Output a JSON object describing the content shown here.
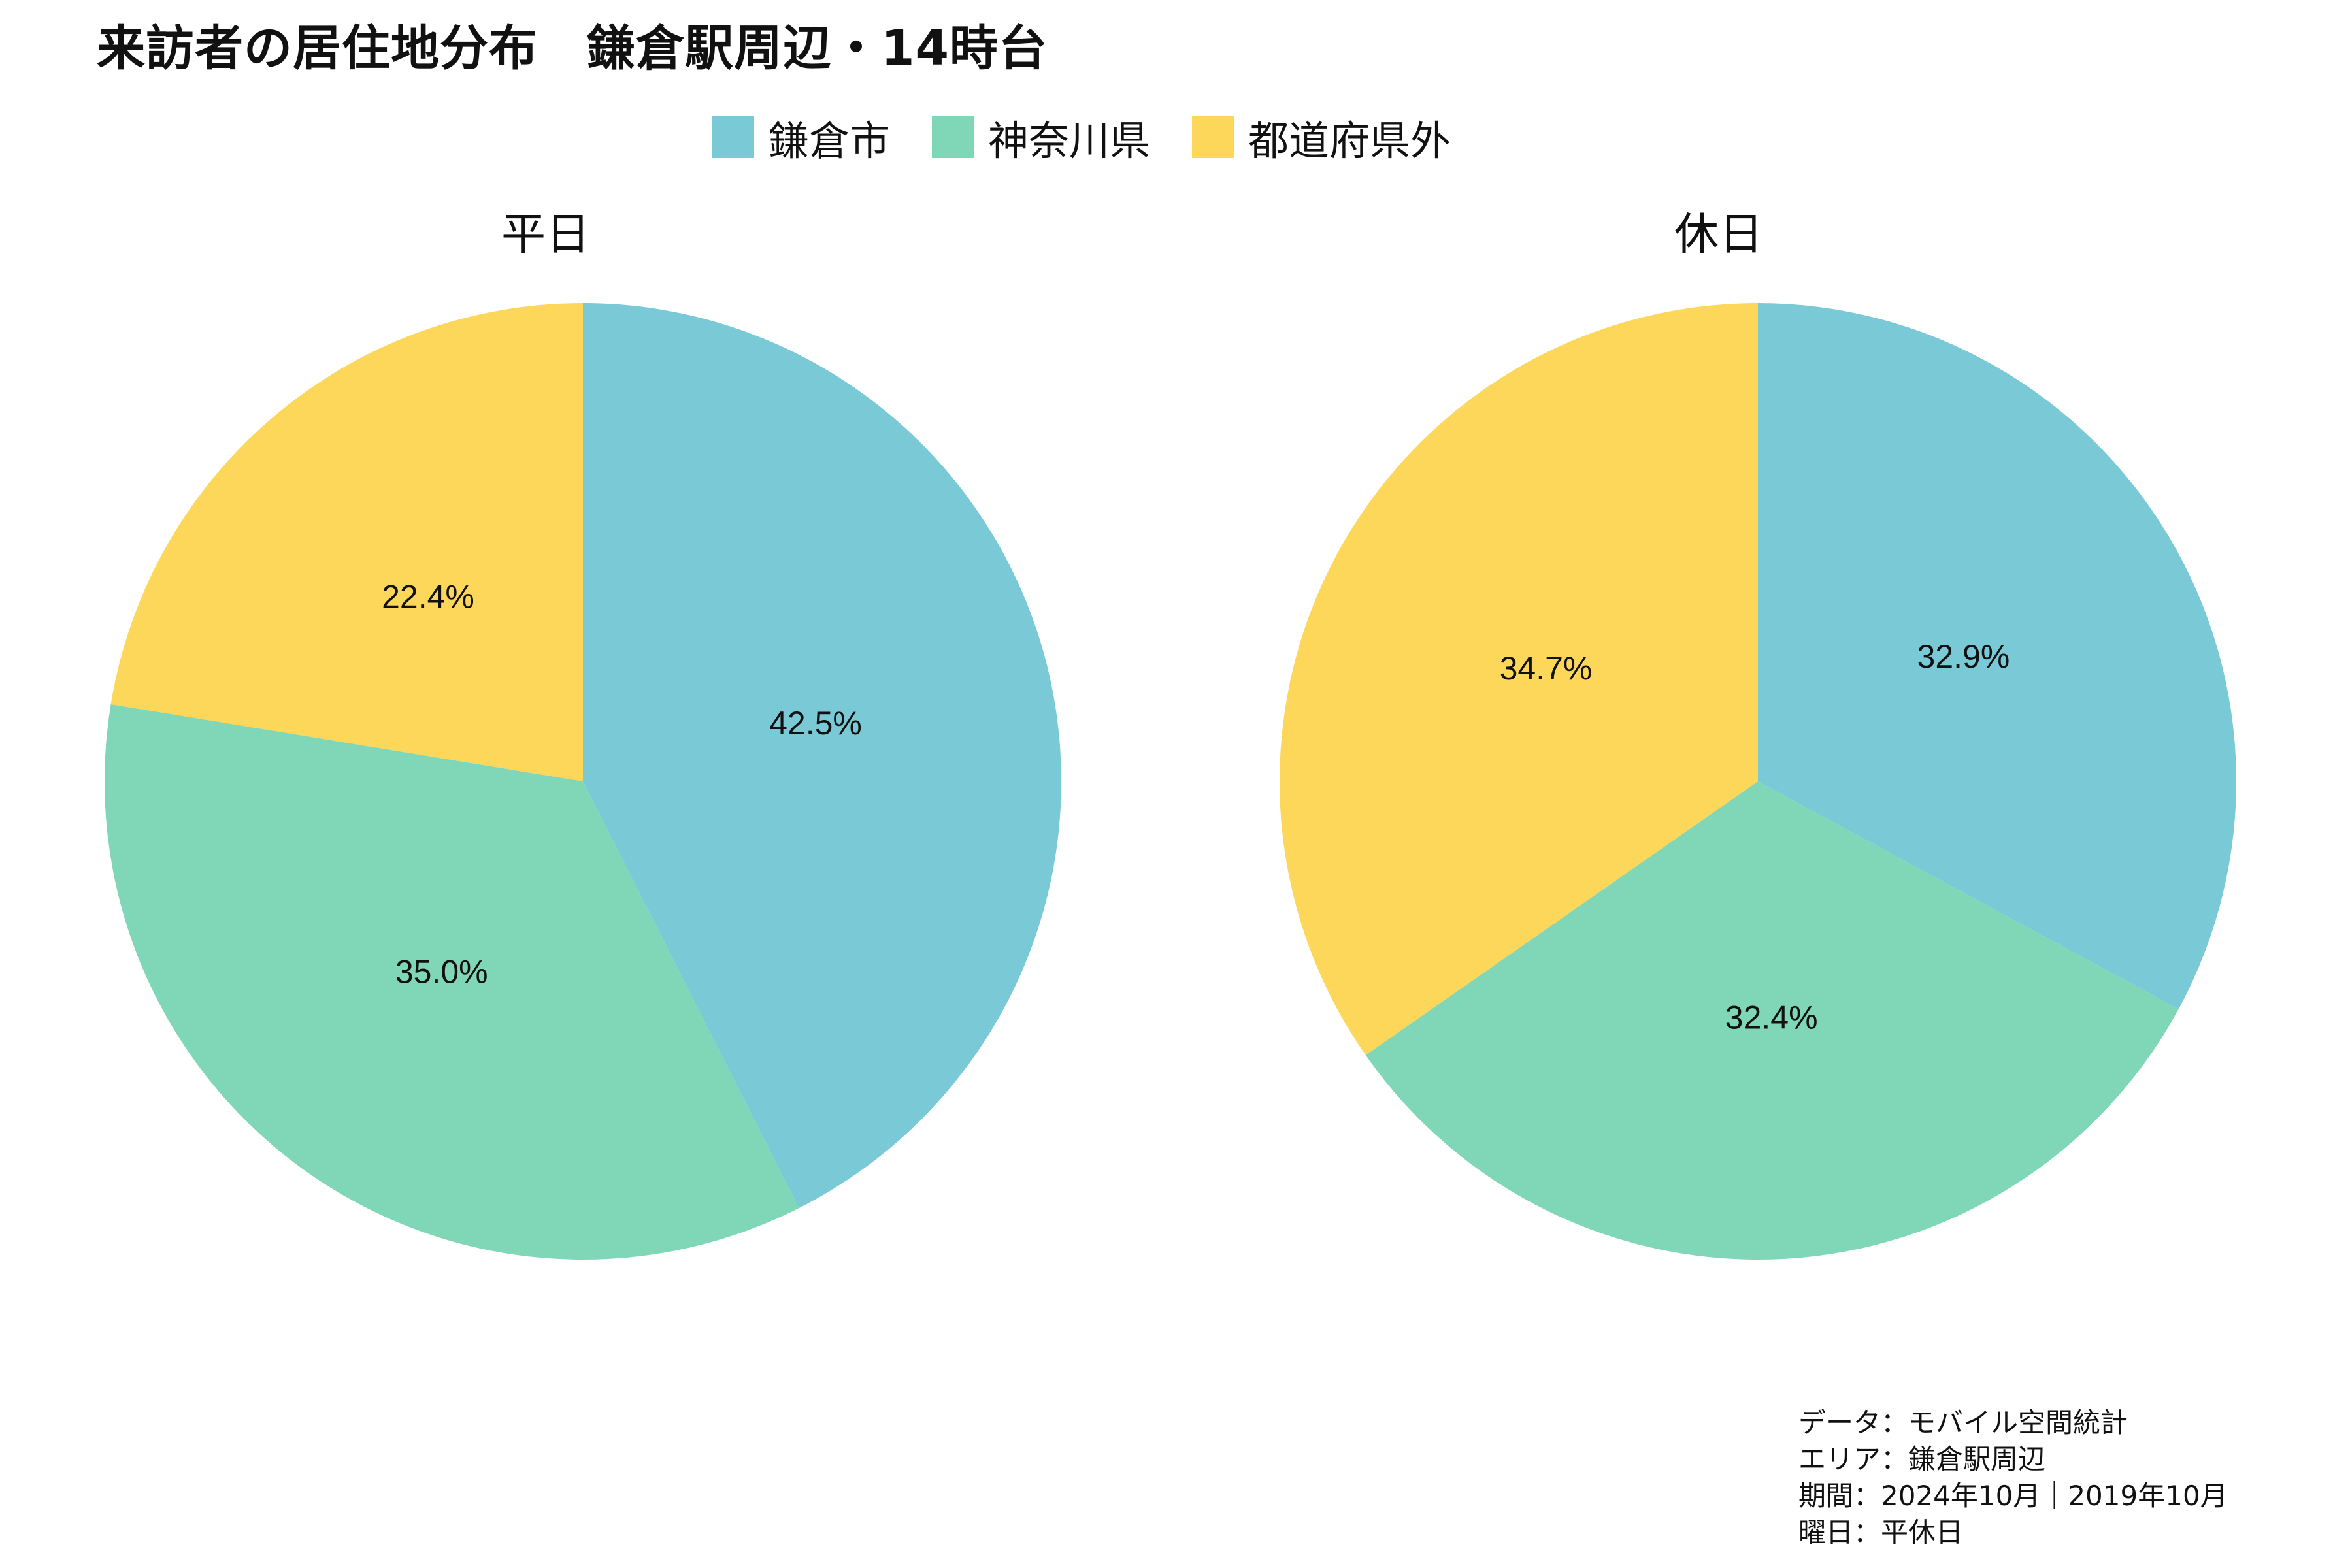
{
  "title": "来訪者の居住地分布　鎌倉駅周辺・14時台",
  "legend": [
    {
      "label": "鎌倉市",
      "color": "#7AC9D6"
    },
    {
      "label": "神奈川県",
      "color": "#7FD7B8"
    },
    {
      "label": "都道府県外",
      "color": "#FDD75A"
    }
  ],
  "chart_data": [
    {
      "type": "pie",
      "title": "平日",
      "categories": [
        "鎌倉市",
        "神奈川県",
        "都道府県外"
      ],
      "values": [
        42.5,
        35.0,
        22.4
      ],
      "labels": [
        "42.5%",
        "35.0%",
        "22.4%"
      ],
      "colors": [
        "#7AC9D6",
        "#7FD7B8",
        "#FDD75A"
      ],
      "start": "12 o'clock",
      "direction": "clockwise"
    },
    {
      "type": "pie",
      "title": "休日",
      "categories": [
        "鎌倉市",
        "神奈川県",
        "都道府県外"
      ],
      "values": [
        32.9,
        32.4,
        34.7
      ],
      "labels": [
        "32.9%",
        "32.4%",
        "34.7%"
      ],
      "colors": [
        "#7AC9D6",
        "#7FD7B8",
        "#FDD75A"
      ],
      "start": "12 o'clock",
      "direction": "clockwise"
    }
  ],
  "notes": [
    "データ：モバイル空間統計",
    "エリア：鎌倉駅周辺",
    "期間：2024年10月｜2019年10月",
    "曜日：平休日"
  ]
}
